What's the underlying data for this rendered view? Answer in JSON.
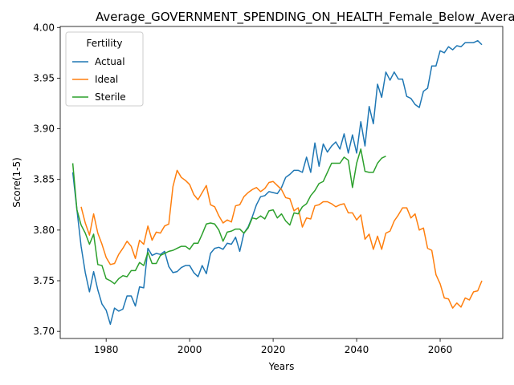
{
  "chart_data": {
    "type": "line",
    "title": "Average_GOVERNMENT_SPENDING_ON_HEALTH_Female_Below_Average_",
    "xlabel": "Years",
    "ylabel": "Score(1-5)",
    "xlim": [
      1969,
      2075
    ],
    "ylim": [
      3.693,
      4.001
    ],
    "xticks": [
      1980,
      2000,
      2020,
      2040,
      2060
    ],
    "yticks": [
      3.7,
      3.75,
      3.8,
      3.85,
      3.9,
      3.95,
      4.0
    ],
    "xtick_labels": [
      "1980",
      "2000",
      "2020",
      "2040",
      "2060"
    ],
    "ytick_labels": [
      "3.70",
      "3.75",
      "3.80",
      "3.85",
      "3.90",
      "3.95",
      "4.00"
    ],
    "grid": false,
    "legend": {
      "title": "Fertility",
      "position": "top-left"
    },
    "series": [
      {
        "name": "Actual",
        "color": "#1f77b4",
        "x": [
          1972,
          1973,
          1974,
          1975,
          1976,
          1977,
          1978,
          1979,
          1980,
          1981,
          1982,
          1983,
          1984,
          1985,
          1986,
          1987,
          1988,
          1989,
          1990,
          1991,
          1992,
          1993,
          1994,
          1995,
          1996,
          1997,
          1998,
          1999,
          2000,
          2001,
          2002,
          2003,
          2004,
          2005,
          2006,
          2007,
          2008,
          2009,
          2010,
          2011,
          2012,
          2013,
          2014,
          2015,
          2016,
          2017,
          2018,
          2019,
          2020,
          2021,
          2022,
          2023,
          2024,
          2025,
          2026,
          2027,
          2028,
          2029,
          2030,
          2031,
          2032,
          2033,
          2034,
          2035,
          2036,
          2037,
          2038,
          2039,
          2040,
          2041,
          2042,
          2043,
          2044,
          2045,
          2046,
          2047,
          2048,
          2049,
          2050,
          2051,
          2052,
          2053,
          2054,
          2055,
          2056,
          2057,
          2058,
          2059,
          2060,
          2061,
          2062,
          2063,
          2064,
          2065,
          2066,
          2067,
          2068,
          2069,
          2070
        ],
        "values": [
          3.857,
          3.82,
          3.784,
          3.758,
          3.739,
          3.759,
          3.741,
          3.727,
          3.721,
          3.707,
          3.723,
          3.72,
          3.722,
          3.735,
          3.735,
          3.725,
          3.744,
          3.743,
          3.782,
          3.775,
          3.777,
          3.776,
          3.779,
          3.764,
          3.758,
          3.759,
          3.763,
          3.765,
          3.765,
          3.758,
          3.754,
          3.765,
          3.757,
          3.777,
          3.782,
          3.783,
          3.781,
          3.787,
          3.786,
          3.793,
          3.779,
          3.797,
          3.803,
          3.813,
          3.825,
          3.833,
          3.834,
          3.838,
          3.837,
          3.836,
          3.842,
          3.852,
          3.855,
          3.859,
          3.859,
          3.857,
          3.872,
          3.857,
          3.886,
          3.863,
          3.885,
          3.877,
          3.883,
          3.887,
          3.88,
          3.895,
          3.876,
          3.894,
          3.876,
          3.907,
          3.883,
          3.922,
          3.905,
          3.944,
          3.931,
          3.956,
          3.948,
          3.956,
          3.949,
          3.949,
          3.932,
          3.93,
          3.924,
          3.921,
          3.937,
          3.94,
          3.962,
          3.962,
          3.977,
          3.975,
          3.981,
          3.978,
          3.982,
          3.981,
          3.985,
          3.985,
          3.985,
          3.987,
          3.983
        ]
      },
      {
        "name": "Ideal",
        "color": "#ff7f0e",
        "x": [
          1974,
          1975,
          1976,
          1977,
          1978,
          1979,
          1980,
          1981,
          1982,
          1983,
          1984,
          1985,
          1986,
          1987,
          1988,
          1989,
          1990,
          1991,
          1992,
          1993,
          1994,
          1995,
          1996,
          1997,
          1998,
          1999,
          2000,
          2001,
          2002,
          2003,
          2004,
          2005,
          2006,
          2007,
          2008,
          2009,
          2010,
          2011,
          2012,
          2013,
          2014,
          2015,
          2016,
          2017,
          2018,
          2019,
          2020,
          2021,
          2022,
          2023,
          2024,
          2025,
          2026,
          2027,
          2028,
          2029,
          2030,
          2031,
          2032,
          2033,
          2034,
          2035,
          2036,
          2037,
          2038,
          2039,
          2040,
          2041,
          2042,
          2043,
          2044,
          2045,
          2046,
          2047,
          2048,
          2049,
          2050,
          2051,
          2052,
          2053,
          2054,
          2055,
          2056,
          2057,
          2058,
          2059,
          2060,
          2061,
          2062,
          2063,
          2064,
          2065,
          2066,
          2067,
          2068,
          2069,
          2070
        ],
        "values": [
          3.823,
          3.807,
          3.795,
          3.816,
          3.797,
          3.786,
          3.773,
          3.766,
          3.767,
          3.776,
          3.782,
          3.789,
          3.784,
          3.772,
          3.79,
          3.786,
          3.804,
          3.79,
          3.798,
          3.797,
          3.804,
          3.806,
          3.843,
          3.859,
          3.852,
          3.849,
          3.845,
          3.835,
          3.83,
          3.837,
          3.844,
          3.825,
          3.823,
          3.814,
          3.807,
          3.81,
          3.808,
          3.824,
          3.825,
          3.833,
          3.837,
          3.84,
          3.842,
          3.838,
          3.841,
          3.847,
          3.848,
          3.844,
          3.84,
          3.832,
          3.831,
          3.819,
          3.822,
          3.803,
          3.812,
          3.811,
          3.824,
          3.825,
          3.828,
          3.828,
          3.826,
          3.823,
          3.825,
          3.826,
          3.817,
          3.817,
          3.81,
          3.815,
          3.791,
          3.796,
          3.781,
          3.794,
          3.781,
          3.797,
          3.799,
          3.809,
          3.815,
          3.822,
          3.822,
          3.812,
          3.816,
          3.8,
          3.802,
          3.782,
          3.78,
          3.756,
          3.747,
          3.733,
          3.732,
          3.723,
          3.728,
          3.724,
          3.733,
          3.731,
          3.739,
          3.74,
          3.75
        ]
      },
      {
        "name": "Sterile",
        "color": "#2ca02c",
        "x": [
          1972,
          1973,
          1974,
          1975,
          1976,
          1977,
          1978,
          1979,
          1980,
          1981,
          1982,
          1983,
          1984,
          1985,
          1986,
          1987,
          1988,
          1989,
          1990,
          1991,
          1992,
          1993,
          1994,
          1995,
          1996,
          1997,
          1998,
          1999,
          2000,
          2001,
          2002,
          2003,
          2004,
          2005,
          2006,
          2007,
          2008,
          2009,
          2010,
          2011,
          2012,
          2013,
          2014,
          2015,
          2016,
          2017,
          2018,
          2019,
          2020,
          2021,
          2022,
          2023,
          2024,
          2025,
          2026,
          2027,
          2028,
          2029,
          2030,
          2031,
          2032,
          2033,
          2034,
          2035,
          2036,
          2037,
          2038,
          2039,
          2040,
          2041,
          2042,
          2043,
          2044,
          2045,
          2046,
          2047
        ],
        "values": [
          3.866,
          3.82,
          3.805,
          3.797,
          3.786,
          3.796,
          3.766,
          3.765,
          3.752,
          3.75,
          3.747,
          3.752,
          3.755,
          3.754,
          3.76,
          3.76,
          3.768,
          3.765,
          3.778,
          3.767,
          3.767,
          3.775,
          3.777,
          3.779,
          3.78,
          3.782,
          3.784,
          3.784,
          3.781,
          3.787,
          3.787,
          3.796,
          3.806,
          3.807,
          3.806,
          3.8,
          3.789,
          3.798,
          3.799,
          3.801,
          3.801,
          3.797,
          3.802,
          3.812,
          3.811,
          3.814,
          3.811,
          3.819,
          3.82,
          3.812,
          3.816,
          3.809,
          3.805,
          3.817,
          3.816,
          3.823,
          3.826,
          3.834,
          3.839,
          3.846,
          3.848,
          3.857,
          3.866,
          3.866,
          3.866,
          3.872,
          3.869,
          3.842,
          3.866,
          3.88,
          3.858,
          3.857,
          3.857,
          3.866,
          3.871,
          3.873
        ]
      }
    ]
  }
}
